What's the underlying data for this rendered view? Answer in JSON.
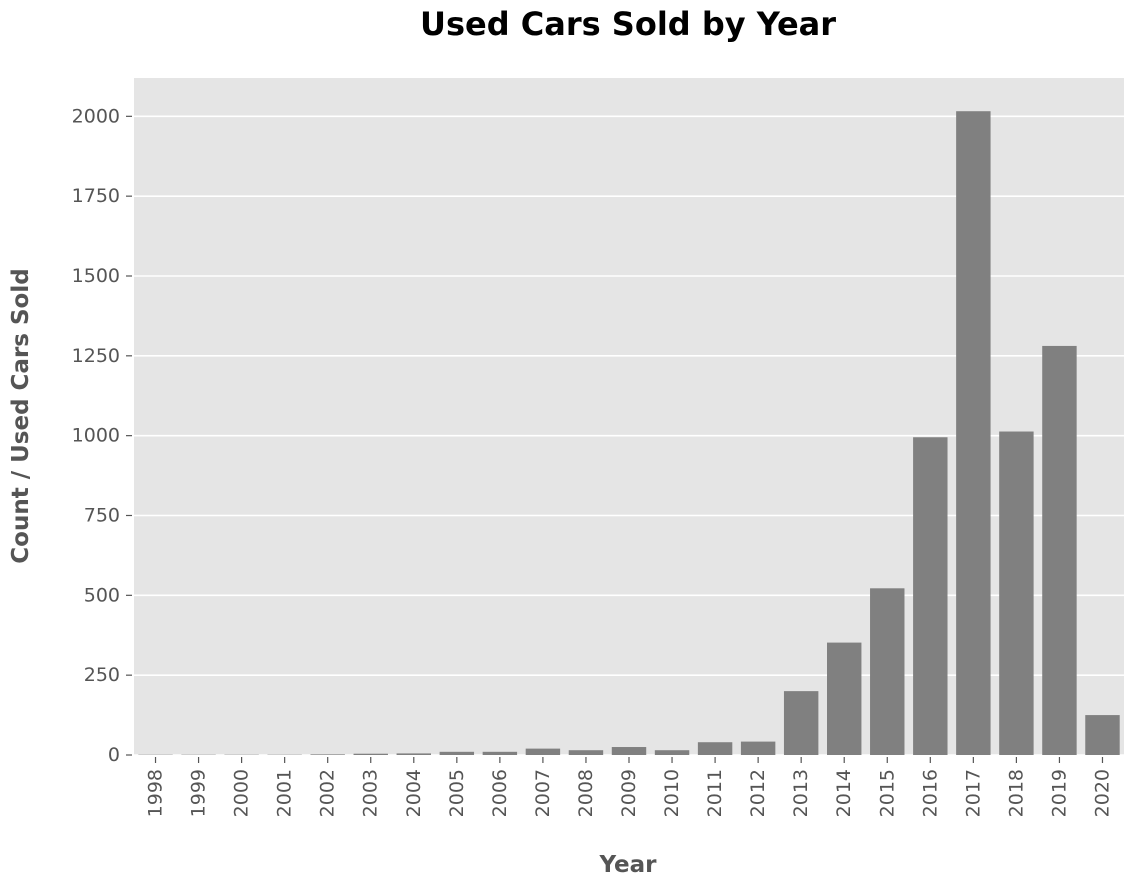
{
  "chart_data": {
    "type": "bar",
    "title": "Used Cars Sold by Year",
    "xlabel": "Year",
    "ylabel": "Count / Used Cars Sold",
    "categories": [
      "1998",
      "1999",
      "2000",
      "2001",
      "2002",
      "2003",
      "2004",
      "2005",
      "2006",
      "2007",
      "2008",
      "2009",
      "2010",
      "2011",
      "2012",
      "2013",
      "2014",
      "2015",
      "2016",
      "2017",
      "2018",
      "2019",
      "2020"
    ],
    "values": [
      1,
      1,
      1,
      1,
      2,
      4,
      5,
      10,
      10,
      20,
      15,
      25,
      15,
      40,
      42,
      200,
      352,
      522,
      995,
      2016,
      1013,
      1281,
      125
    ],
    "ylim": [
      0,
      2120
    ],
    "yticks": [
      0,
      250,
      500,
      750,
      1000,
      1250,
      1500,
      1750,
      2000
    ],
    "grid": true,
    "colors": {
      "bar": "#808080",
      "plot_background": "#e5e5e5",
      "grid": "#ffffff",
      "text": "#555555",
      "title": "#000000"
    }
  }
}
